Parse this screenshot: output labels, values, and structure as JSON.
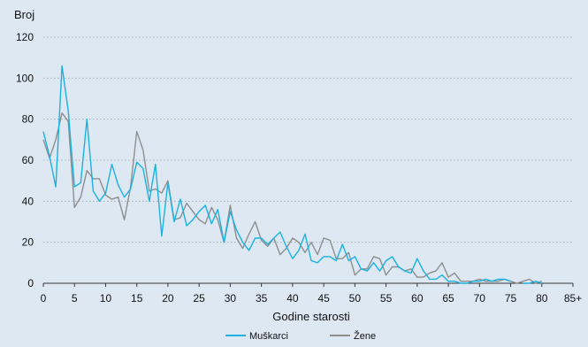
{
  "chart_data": {
    "type": "line",
    "ylabel": "Broj",
    "xlabel": "Godine starosti",
    "ylim": [
      0,
      120
    ],
    "yticks": [
      0,
      20,
      40,
      60,
      80,
      100,
      120
    ],
    "xlim": [
      0,
      85
    ],
    "xticks": [
      0,
      5,
      10,
      15,
      20,
      25,
      30,
      35,
      40,
      45,
      50,
      55,
      60,
      65,
      70,
      75,
      80,
      85
    ],
    "xtick_labels": [
      "0",
      "5",
      "10",
      "15",
      "20",
      "25",
      "30",
      "35",
      "40",
      "45",
      "50",
      "55",
      "60",
      "65",
      "70",
      "75",
      "80",
      "85+"
    ],
    "grid": "horizontal dotted",
    "legend_position": "bottom-center",
    "series": [
      {
        "name": "Muškarci",
        "color": "#1ab2e0",
        "x": [
          0,
          1,
          2,
          3,
          4,
          5,
          6,
          7,
          8,
          9,
          10,
          11,
          12,
          13,
          14,
          15,
          16,
          17,
          18,
          19,
          20,
          21,
          22,
          23,
          24,
          25,
          26,
          27,
          28,
          29,
          30,
          31,
          32,
          33,
          34,
          35,
          36,
          37,
          38,
          39,
          40,
          41,
          42,
          43,
          44,
          45,
          46,
          47,
          48,
          49,
          50,
          51,
          52,
          53,
          54,
          55,
          56,
          57,
          58,
          59,
          60,
          61,
          62,
          63,
          64,
          65,
          66,
          67,
          68,
          69,
          70,
          71,
          72,
          73,
          74,
          75
        ],
        "values": [
          74,
          62,
          47,
          106,
          84,
          47,
          49,
          80,
          45,
          40,
          44,
          58,
          48,
          42,
          46,
          59,
          56,
          40,
          58,
          23,
          49,
          30,
          41,
          28,
          31,
          35,
          38,
          29,
          36,
          20,
          35,
          26,
          20,
          16,
          22,
          22,
          19,
          22,
          25,
          18,
          12,
          16,
          24,
          11,
          10,
          13,
          13,
          11,
          19,
          11,
          13,
          7,
          6,
          10,
          6,
          11,
          13,
          8,
          6,
          5,
          12,
          6,
          2,
          2,
          4,
          1,
          1,
          0,
          0,
          1,
          1,
          2,
          1,
          2,
          2,
          1
        ],
        "extra_x": [
          77,
          78,
          79,
          80
        ],
        "extra_values": [
          0,
          0,
          1,
          0
        ]
      },
      {
        "name": "Žene",
        "color": "#8e8e8e",
        "x": [
          0,
          1,
          2,
          3,
          4,
          5,
          6,
          7,
          8,
          9,
          10,
          11,
          12,
          13,
          14,
          15,
          16,
          17,
          18,
          19,
          20,
          21,
          22,
          23,
          24,
          25,
          26,
          27,
          28,
          29,
          30,
          31,
          32,
          33,
          34,
          35,
          36,
          37,
          38,
          39,
          40,
          41,
          42,
          43,
          44,
          45,
          46,
          47,
          48,
          49,
          50,
          51,
          52,
          53,
          54,
          55,
          56,
          57,
          58,
          59,
          60,
          61,
          62,
          63,
          64,
          65,
          66,
          67,
          68,
          69,
          70,
          71,
          72,
          73,
          74,
          75,
          76,
          77,
          78,
          79,
          80
        ],
        "values": [
          70,
          61,
          70,
          83,
          79,
          37,
          42,
          55,
          51,
          51,
          43,
          41,
          42,
          31,
          47,
          74,
          65,
          45,
          46,
          44,
          50,
          31,
          32,
          39,
          35,
          31,
          29,
          37,
          31,
          20,
          38,
          22,
          17,
          24,
          30,
          21,
          18,
          22,
          14,
          17,
          22,
          20,
          15,
          20,
          14,
          22,
          21,
          12,
          12,
          15,
          4,
          7,
          7,
          13,
          12,
          4,
          8,
          8,
          6,
          7,
          3,
          3,
          5,
          6,
          10,
          3,
          5,
          1,
          1,
          1,
          2,
          1,
          1,
          1,
          2,
          1,
          0,
          1,
          2,
          0,
          1
        ]
      }
    ]
  }
}
